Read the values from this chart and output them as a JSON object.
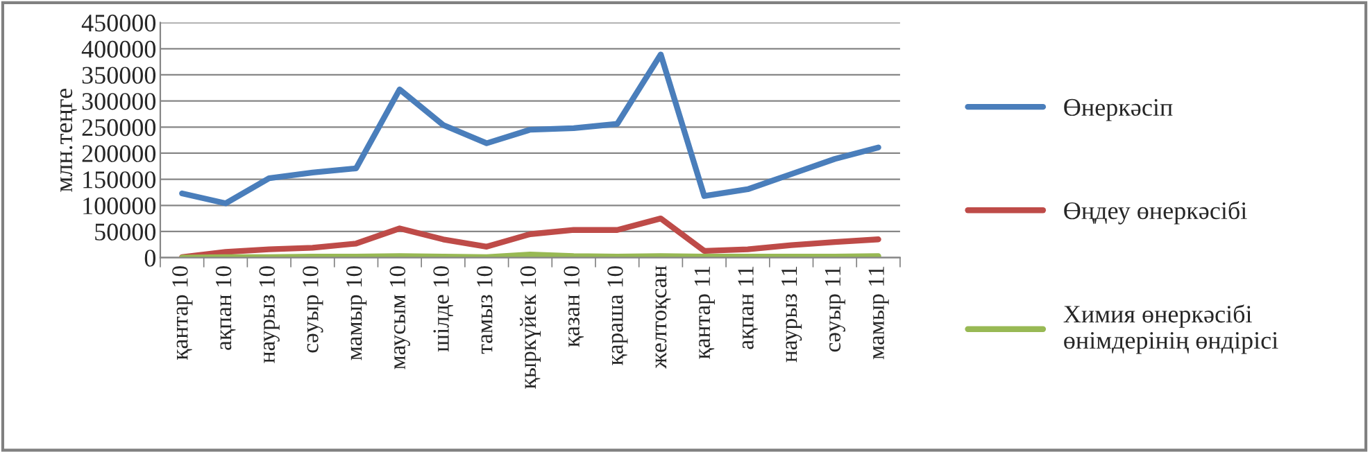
{
  "chart_data": {
    "type": "line",
    "ylabel": "млн.теңге",
    "categories": [
      "қантар 10",
      "ақпан 10",
      "наурыз 10",
      "сәуыр 10",
      "мамыр 10",
      "маусым 10",
      "шілде 10",
      "тамыз 10",
      "қыркүйек 10",
      "қазан 10",
      "қараша 10",
      "желтоқсан",
      "қантар 11",
      "ақпан 11",
      "наурыз 11",
      "сәуыр 11",
      "мамыр 11"
    ],
    "series": [
      {
        "name": "Өнеркәсіп",
        "color": "#4a7ebb",
        "values": [
          123000,
          104000,
          152000,
          163000,
          171000,
          322000,
          254000,
          219000,
          245000,
          248000,
          256000,
          389000,
          118000,
          131000,
          160000,
          189000,
          211000
        ]
      },
      {
        "name": "Өңдеу өнеркәсібі",
        "color": "#be4b48",
        "values": [
          1000,
          11000,
          16000,
          19000,
          27000,
          56000,
          35000,
          21000,
          45000,
          53000,
          53000,
          75000,
          13000,
          16000,
          24000,
          30000,
          35000
        ]
      },
      {
        "name": "Химия өнеркәсібі өнімдерінің өндірісі",
        "color": "#98b954",
        "values": [
          0,
          1000,
          1000,
          2000,
          2000,
          3000,
          2000,
          1000,
          6000,
          3000,
          2000,
          3000,
          2000,
          2000,
          2000,
          2000,
          3000
        ]
      }
    ],
    "ylim": [
      0,
      450000
    ],
    "yticks": [
      0,
      50000,
      100000,
      150000,
      200000,
      250000,
      300000,
      350000,
      400000,
      450000
    ],
    "grid": "y",
    "legend": "right",
    "marker": "none",
    "line_style": "solid"
  }
}
